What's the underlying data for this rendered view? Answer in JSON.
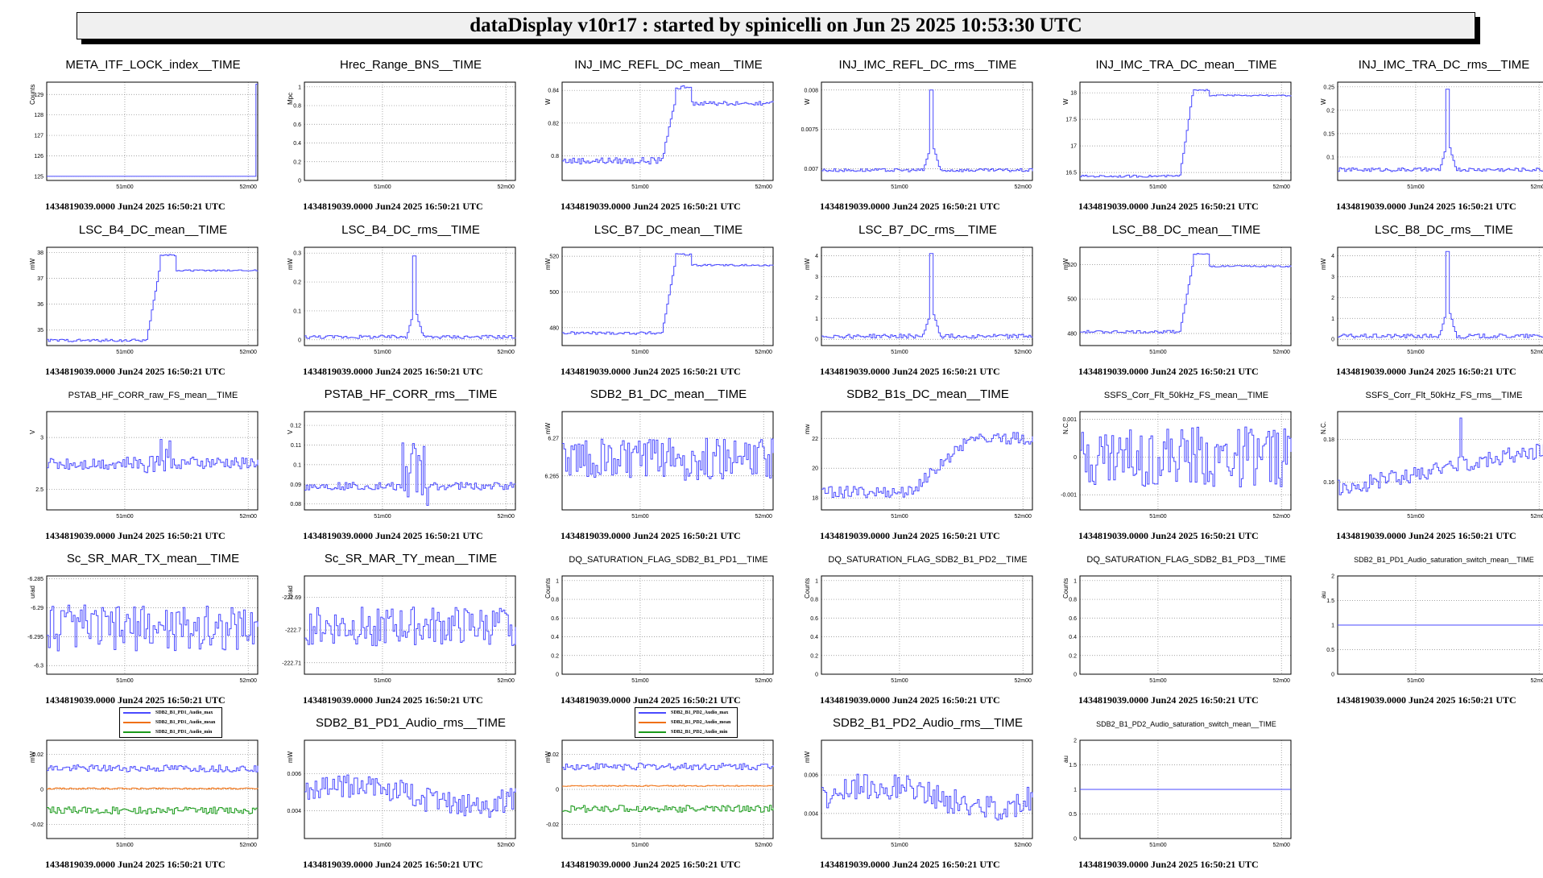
{
  "header": {
    "title": "dataDisplay v10r17 : started by spinicelli on Jun 25 2025 10:53:30 UTC"
  },
  "stamp": "1434819039.0000 Jun24 2025 16:50:21 UTC",
  "colors": {
    "trace": "#4a4aff",
    "mean": "#f07010",
    "min": "#1a9a1a",
    "grid": "#888888"
  },
  "xticks": [
    "51m00",
    "52m00"
  ],
  "chart_data": [
    {
      "type": "line",
      "title": "META_ITF_LOCK_index__TIME",
      "ylabel": "Counts",
      "ylim": [
        124.8,
        129.6
      ],
      "yticks": [
        "125",
        "126",
        "127",
        "128",
        "129"
      ],
      "pattern": "step_end",
      "base": 125,
      "peak": 129.5
    },
    {
      "type": "line",
      "title": "Hrec_Range_BNS__TIME",
      "ylabel": "Mpc",
      "ylim": [
        0,
        1.05
      ],
      "yticks": [
        "0",
        "0.2",
        "0.4",
        "0.6",
        "0.8",
        "1"
      ],
      "pattern": "empty"
    },
    {
      "type": "line",
      "title": "INJ_IMC_REFL_DC_mean__TIME",
      "ylabel": "W",
      "ylim": [
        0.785,
        0.845
      ],
      "yticks": [
        "0.8",
        "0.82",
        "0.84"
      ],
      "pattern": "rise",
      "base": 0.797,
      "high": 0.832,
      "over": 0.842,
      "noise": 0.002
    },
    {
      "type": "line",
      "title": "INJ_IMC_REFL_DC_rms__TIME",
      "ylabel": "W",
      "ylim": [
        0.00685,
        0.0081
      ],
      "yticks": [
        "0.007",
        "0.0075",
        "0.008"
      ],
      "pattern": "spike",
      "base": 0.00698,
      "peak": 0.008,
      "noise": 2e-05
    },
    {
      "type": "line",
      "title": "INJ_IMC_TRA_DC_mean__TIME",
      "ylabel": "W",
      "ylim": [
        16.35,
        18.2
      ],
      "yticks": [
        "16.5",
        "17",
        "17.5",
        "18"
      ],
      "pattern": "rise",
      "base": 16.43,
      "high": 17.95,
      "over": 18.05,
      "noise": 0.02
    },
    {
      "type": "line",
      "title": "INJ_IMC_TRA_DC_rms__TIME",
      "ylabel": "W",
      "ylim": [
        0.05,
        0.26
      ],
      "yticks": [
        "0.1",
        "0.15",
        "0.2",
        "0.25"
      ],
      "pattern": "spike",
      "base": 0.073,
      "peak": 0.245,
      "noise": 0.004
    },
    {
      "type": "line",
      "title": "LSC_B4_DC_mean__TIME",
      "ylabel": "mW",
      "ylim": [
        34.4,
        38.2
      ],
      "yticks": [
        "35",
        "36",
        "37",
        "38"
      ],
      "pattern": "rise",
      "base": 34.6,
      "high": 37.3,
      "over": 37.9,
      "noise": 0.05
    },
    {
      "type": "line",
      "title": "LSC_B4_DC_rms__TIME",
      "ylabel": "mW",
      "ylim": [
        -0.02,
        0.32
      ],
      "yticks": [
        "0",
        "0.1",
        "0.2",
        "0.3"
      ],
      "pattern": "spike",
      "base": 0.01,
      "peak": 0.29,
      "noise": 0.006
    },
    {
      "type": "line",
      "title": "LSC_B7_DC_mean__TIME",
      "ylabel": "mW",
      "ylim": [
        470,
        525
      ],
      "yticks": [
        "480",
        "500",
        "520"
      ],
      "pattern": "rise",
      "base": 477,
      "high": 515,
      "over": 521,
      "noise": 0.8
    },
    {
      "type": "line",
      "title": "LSC_B7_DC_rms__TIME",
      "ylabel": "mW",
      "ylim": [
        -0.3,
        4.4
      ],
      "yticks": [
        "0",
        "1",
        "2",
        "3",
        "4"
      ],
      "pattern": "spike",
      "base": 0.15,
      "peak": 4.1,
      "noise": 0.1
    },
    {
      "type": "line",
      "title": "LSC_B8_DC_mean__TIME",
      "ylabel": "mW",
      "ylim": [
        473,
        530
      ],
      "yticks": [
        "480",
        "500",
        "520"
      ],
      "pattern": "rise",
      "base": 481,
      "high": 519,
      "over": 526,
      "noise": 0.8
    },
    {
      "type": "line",
      "title": "LSC_B8_DC_rms__TIME",
      "ylabel": "mW",
      "ylim": [
        -0.3,
        4.4
      ],
      "yticks": [
        "0",
        "1",
        "2",
        "3",
        "4"
      ],
      "pattern": "spike",
      "base": 0.15,
      "peak": 4.2,
      "noise": 0.1
    },
    {
      "type": "line",
      "title": "PSTAB_HF_CORR_raw_FS_mean__TIME",
      "ylabel": "V",
      "ylim": [
        2.3,
        3.25
      ],
      "yticks": [
        "2.5",
        "3"
      ],
      "pattern": "wiggle",
      "base": 2.75,
      "noise": 0.06,
      "burst": 0.35
    },
    {
      "type": "line",
      "title": "PSTAB_HF_CORR_rms__TIME",
      "ylabel": "V",
      "ylim": [
        0.077,
        0.127
      ],
      "yticks": [
        "0.08",
        "0.09",
        "0.1",
        "0.11",
        "0.12"
      ],
      "pattern": "wiggle",
      "base": 0.089,
      "noise": 0.002,
      "burst": 0.033
    },
    {
      "type": "line",
      "title": "SDB2_B1_DC_mean__TIME",
      "ylabel": "mW",
      "ylim": [
        6.2605,
        6.2735
      ],
      "yticks": [
        "6.265",
        "6.27"
      ],
      "pattern": "noisy",
      "base": 6.2672,
      "noise": 0.0028
    },
    {
      "type": "line",
      "title": "SDB2_B1s_DC_mean__TIME",
      "ylabel": "mw",
      "ylim": [
        17.2,
        23.8
      ],
      "yticks": [
        "18",
        "20",
        "22"
      ],
      "pattern": "rise_slow",
      "base": 18.4,
      "high": 22.0,
      "noise": 0.4
    },
    {
      "type": "line",
      "title": "SSFS_Corr_Flt_50kHz_FS_mean__TIME",
      "ylabel": "N.C.",
      "ylim": [
        -0.0014,
        0.0012
      ],
      "yticks": [
        "-0.001",
        "0",
        "0.001"
      ],
      "pattern": "noisy",
      "base": 0,
      "noise": 0.0008
    },
    {
      "type": "line",
      "title": "SSFS_Corr_Flt_50kHz_FS_rms__TIME",
      "ylabel": "N.C.",
      "ylim": [
        0.147,
        0.193
      ],
      "yticks": [
        "0.16",
        "0.18"
      ],
      "pattern": "drift_spike",
      "base": 0.157,
      "high": 0.176,
      "peak": 0.19,
      "noise": 0.004
    },
    {
      "type": "line",
      "title": "Sc_SR_MAR_TX_mean__TIME",
      "ylabel": "urad",
      "ylim": [
        -6.3015,
        -6.2845
      ],
      "yticks": [
        "-6.285",
        "-6.29",
        "-6.295",
        "-6.3"
      ],
      "pattern": "noisy",
      "base": -6.2935,
      "noise": 0.004
    },
    {
      "type": "line",
      "title": "Sc_SR_MAR_TY_mean__TIME",
      "ylabel": "urad",
      "ylim": [
        -222.7135,
        -222.6835
      ],
      "yticks": [
        "-222.69",
        "-222.7",
        "-222.71"
      ],
      "pattern": "noisy",
      "base": -222.699,
      "noise": 0.006
    },
    {
      "type": "line",
      "title": "DQ_SATURATION_FLAG_SDB2_B1_PD1__TIME",
      "ylabel": "Counts",
      "ylim": [
        0,
        1.05
      ],
      "yticks": [
        "0",
        "0.2",
        "0.4",
        "0.6",
        "0.8",
        "1"
      ],
      "pattern": "empty"
    },
    {
      "type": "line",
      "title": "DQ_SATURATION_FLAG_SDB2_B1_PD2__TIME",
      "ylabel": "Counts",
      "ylim": [
        0,
        1.05
      ],
      "yticks": [
        "0",
        "0.2",
        "0.4",
        "0.6",
        "0.8",
        "1"
      ],
      "pattern": "empty"
    },
    {
      "type": "line",
      "title": "DQ_SATURATION_FLAG_SDB2_B1_PD3__TIME",
      "ylabel": "Counts",
      "ylim": [
        0,
        1.05
      ],
      "yticks": [
        "0",
        "0.2",
        "0.4",
        "0.6",
        "0.8",
        "1"
      ],
      "pattern": "empty"
    },
    {
      "type": "line",
      "title": "SDB2_B1_PD1_Audio_saturation_switch_mean__TIME",
      "ylabel": "au",
      "ylim": [
        0,
        2
      ],
      "yticks": [
        "0",
        "0.5",
        "1",
        "1.5",
        "2"
      ],
      "pattern": "flat",
      "base": 1
    },
    {
      "type": "line",
      "title": "",
      "ylabel": "mW",
      "ylim": [
        -0.028,
        0.028
      ],
      "yticks": [
        "-0.02",
        "0",
        "0.02"
      ],
      "pattern": "triple",
      "legend": [
        "SDB2_B1_PD1_Audio_max",
        "SDB2_B1_PD1_Audio_mean",
        "SDB2_B1_PD1_Audio_min"
      ],
      "series": [
        {
          "name": "SDB2_B1_PD1_Audio_max",
          "base": 0.012,
          "noise": 0.002
        },
        {
          "name": "SDB2_B1_PD1_Audio_mean",
          "base": 0.0005,
          "noise": 0.0004
        },
        {
          "name": "SDB2_B1_PD1_Audio_min",
          "base": -0.012,
          "noise": 0.002
        }
      ]
    },
    {
      "type": "line",
      "title": "SDB2_B1_PD1_Audio_rms__TIME",
      "ylabel": "mW",
      "ylim": [
        0.0025,
        0.0078
      ],
      "yticks": [
        "0.004",
        "0.006"
      ],
      "pattern": "noisy_hump",
      "base": 0.0048,
      "noise": 0.0007
    },
    {
      "type": "line",
      "title": "",
      "ylabel": "mW",
      "ylim": [
        -0.028,
        0.028
      ],
      "yticks": [
        "-0.02",
        "0",
        "0.02"
      ],
      "pattern": "triple",
      "legend": [
        "SDB2_B1_PD2_Audio_max",
        "SDB2_B1_PD2_Audio_mean",
        "SDB2_B1_PD2_Audio_min"
      ],
      "series": [
        {
          "name": "SDB2_B1_PD2_Audio_max",
          "base": 0.013,
          "noise": 0.002
        },
        {
          "name": "SDB2_B1_PD2_Audio_mean",
          "base": 0.002,
          "noise": 0.0003
        },
        {
          "name": "SDB2_B1_PD2_Audio_min",
          "base": -0.011,
          "noise": 0.002
        }
      ]
    },
    {
      "type": "line",
      "title": "SDB2_B1_PD2_Audio_rms__TIME",
      "ylabel": "mW",
      "ylim": [
        0.0027,
        0.0078
      ],
      "yticks": [
        "0.004",
        "0.006"
      ],
      "pattern": "noisy_hump",
      "base": 0.0049,
      "noise": 0.0007
    },
    {
      "type": "line",
      "title": "SDB2_B1_PD2_Audio_saturation_switch_mean__TIME",
      "ylabel": "au",
      "ylim": [
        0,
        2
      ],
      "yticks": [
        "0",
        "0.5",
        "1",
        "1.5",
        "2"
      ],
      "pattern": "flat",
      "base": 1
    }
  ]
}
